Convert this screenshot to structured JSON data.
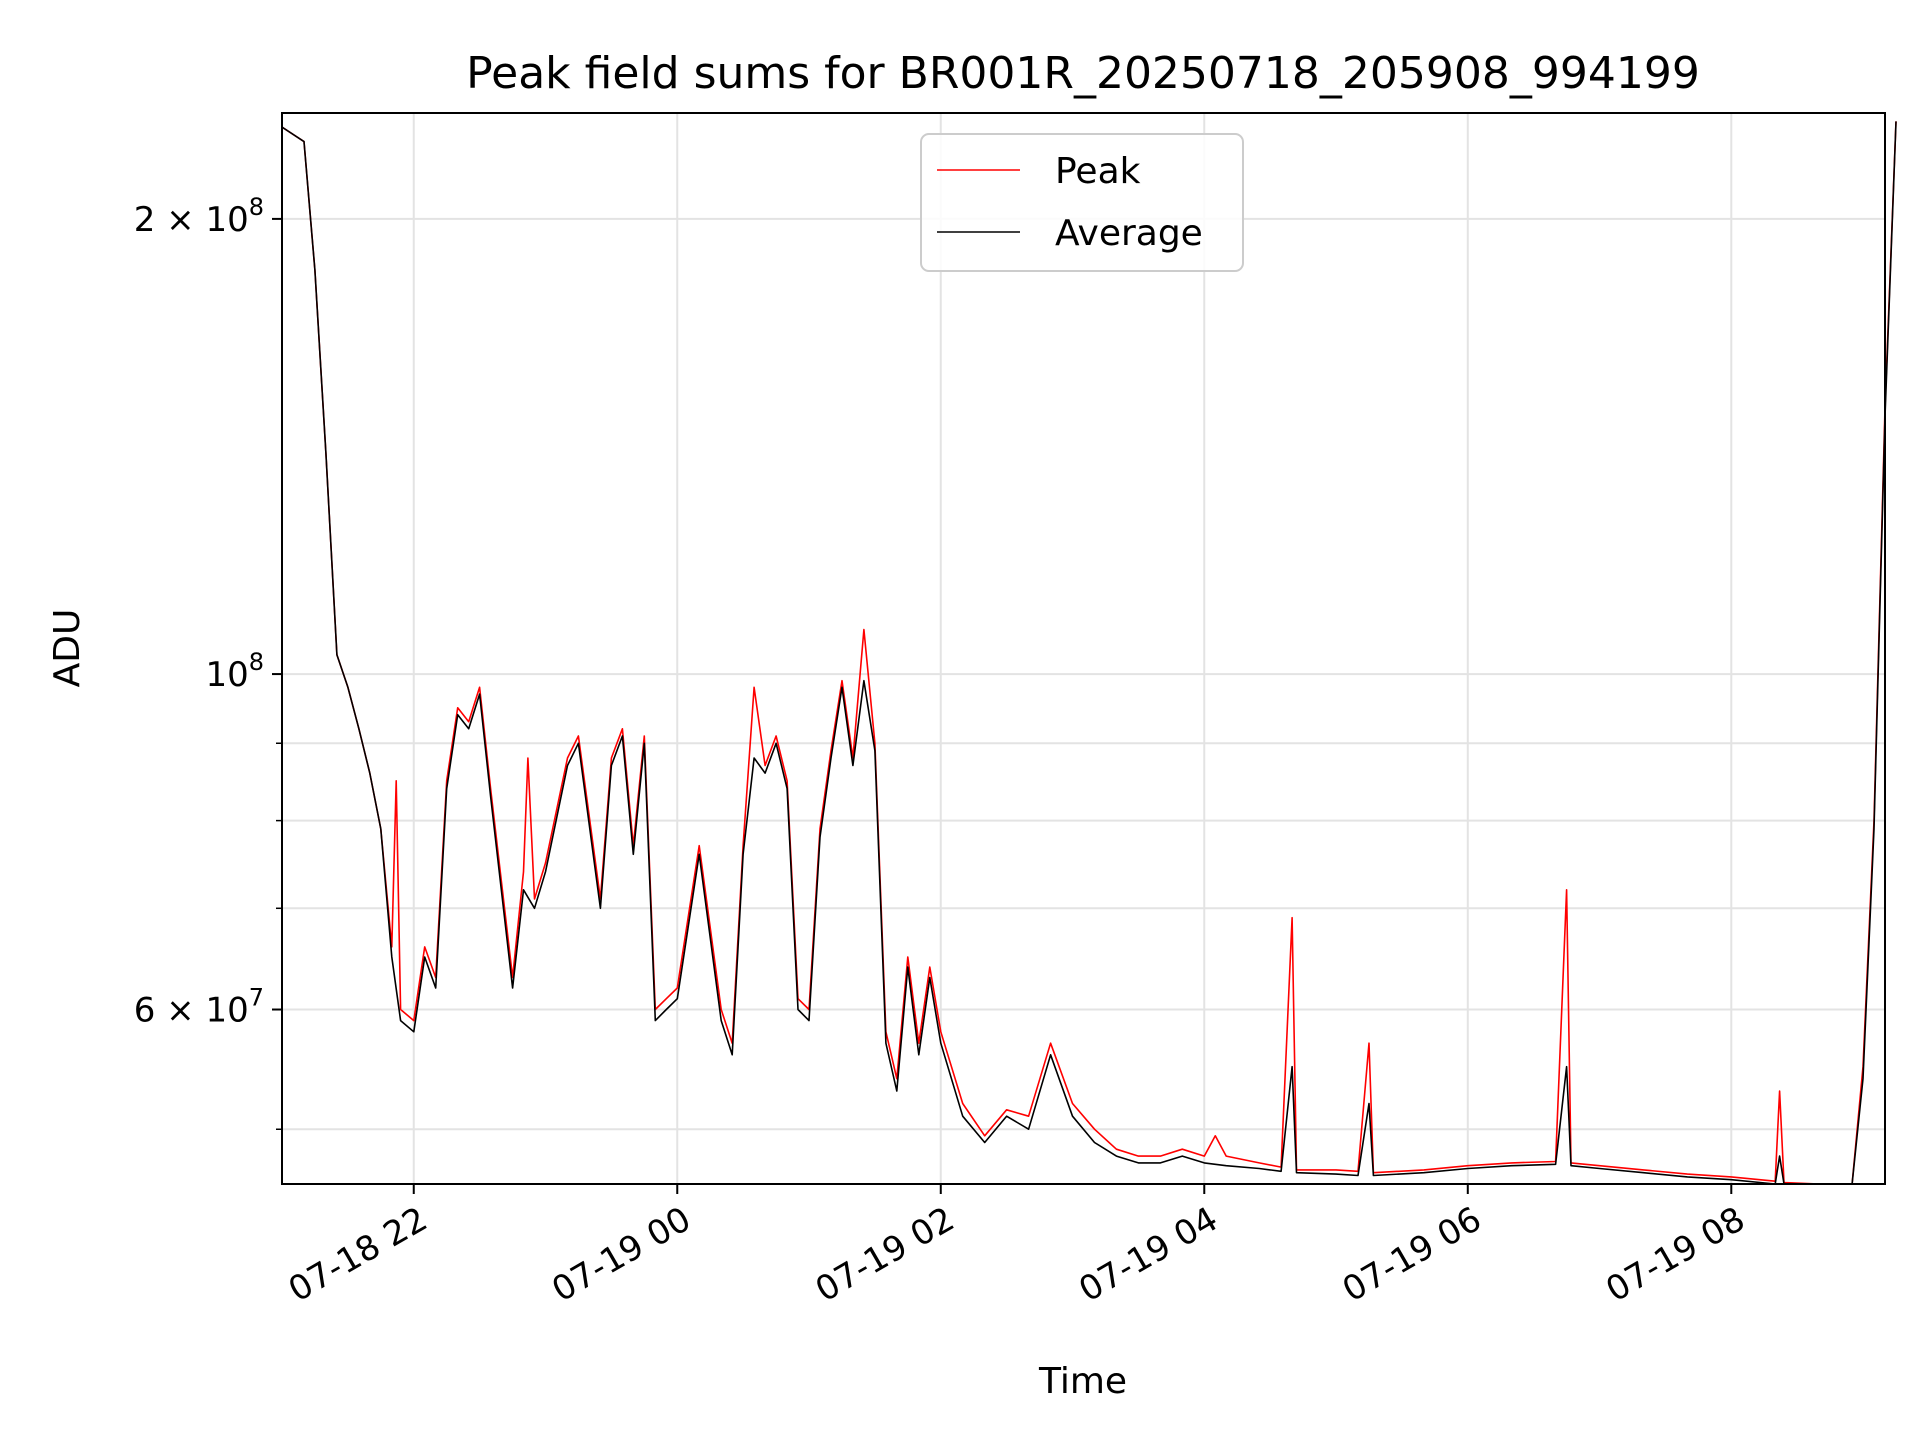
{
  "chart_data": {
    "type": "line",
    "title": "Peak field sums for BR001R_20250718_205908_994199",
    "xlabel": "Time",
    "ylabel": "ADU",
    "yscale": "log",
    "ylim": [
      46000000,
      235000000
    ],
    "xlim": [
      "07-18 21:00",
      "07-19 09:10"
    ],
    "grid": true,
    "legend_position": "top-center",
    "x_ticks": [
      {
        "x": "07-18 22:00",
        "label": "07-18 22"
      },
      {
        "x": "07-19 00:00",
        "label": "07-19 00"
      },
      {
        "x": "07-19 02:00",
        "label": "07-19 02"
      },
      {
        "x": "07-19 04:00",
        "label": "07-19 04"
      },
      {
        "x": "07-19 06:00",
        "label": "07-19 06"
      },
      {
        "x": "07-19 08:00",
        "label": "07-19 08"
      }
    ],
    "y_ticks": [
      {
        "value": 60000000,
        "base": "6 × 10",
        "exp": "7"
      },
      {
        "value": 100000000,
        "base": "10",
        "exp": "8"
      },
      {
        "value": 200000000,
        "base": "2 × 10",
        "exp": "8"
      }
    ],
    "y_minor_ticks": [
      50000000,
      70000000,
      80000000,
      90000000
    ],
    "series": [
      {
        "name": "Peak",
        "color": "#ff0000",
        "points": [
          [
            "07-18 21:00",
            230000000
          ],
          [
            "07-18 21:10",
            225000000
          ],
          [
            "07-18 21:15",
            185000000
          ],
          [
            "07-18 21:20",
            140000000
          ],
          [
            "07-18 21:25",
            103000000
          ],
          [
            "07-18 21:30",
            98000000
          ],
          [
            "07-18 21:35",
            92000000
          ],
          [
            "07-18 21:40",
            86000000
          ],
          [
            "07-18 21:45",
            79000000
          ],
          [
            "07-18 21:50",
            66000000
          ],
          [
            "07-18 21:52",
            85000000
          ],
          [
            "07-18 21:54",
            60000000
          ],
          [
            "07-18 22:00",
            59000000
          ],
          [
            "07-18 22:05",
            66000000
          ],
          [
            "07-18 22:10",
            63000000
          ],
          [
            "07-18 22:15",
            85000000
          ],
          [
            "07-18 22:20",
            95000000
          ],
          [
            "07-18 22:25",
            93000000
          ],
          [
            "07-18 22:30",
            98000000
          ],
          [
            "07-18 22:35",
            84000000
          ],
          [
            "07-18 22:45",
            63000000
          ],
          [
            "07-18 22:50",
            74000000
          ],
          [
            "07-18 22:52",
            88000000
          ],
          [
            "07-18 22:55",
            71000000
          ],
          [
            "07-18 23:00",
            75000000
          ],
          [
            "07-18 23:10",
            88000000
          ],
          [
            "07-18 23:15",
            91000000
          ],
          [
            "07-18 23:25",
            71000000
          ],
          [
            "07-18 23:30",
            88000000
          ],
          [
            "07-18 23:35",
            92000000
          ],
          [
            "07-18 23:40",
            77000000
          ],
          [
            "07-18 23:45",
            91000000
          ],
          [
            "07-18 23:50",
            60000000
          ],
          [
            "07-18 23:55",
            61000000
          ],
          [
            "07-19 00:00",
            62000000
          ],
          [
            "07-19 00:10",
            77000000
          ],
          [
            "07-19 00:20",
            60000000
          ],
          [
            "07-19 00:25",
            57000000
          ],
          [
            "07-19 00:30",
            77000000
          ],
          [
            "07-19 00:35",
            98000000
          ],
          [
            "07-19 00:40",
            87000000
          ],
          [
            "07-19 00:45",
            91000000
          ],
          [
            "07-19 00:50",
            85000000
          ],
          [
            "07-19 00:55",
            61000000
          ],
          [
            "07-19 01:00",
            60000000
          ],
          [
            "07-19 01:05",
            79000000
          ],
          [
            "07-19 01:10",
            89000000
          ],
          [
            "07-19 01:15",
            99000000
          ],
          [
            "07-19 01:20",
            88000000
          ],
          [
            "07-19 01:25",
            107000000
          ],
          [
            "07-19 01:30",
            90000000
          ],
          [
            "07-19 01:35",
            58000000
          ],
          [
            "07-19 01:40",
            54000000
          ],
          [
            "07-19 01:45",
            65000000
          ],
          [
            "07-19 01:50",
            57000000
          ],
          [
            "07-19 01:55",
            64000000
          ],
          [
            "07-19 02:00",
            58000000
          ],
          [
            "07-19 02:10",
            52000000
          ],
          [
            "07-19 02:20",
            49500000
          ],
          [
            "07-19 02:30",
            51500000
          ],
          [
            "07-19 02:40",
            51000000
          ],
          [
            "07-19 02:50",
            57000000
          ],
          [
            "07-19 03:00",
            52000000
          ],
          [
            "07-19 03:10",
            50000000
          ],
          [
            "07-19 03:20",
            48500000
          ],
          [
            "07-19 03:30",
            48000000
          ],
          [
            "07-19 03:40",
            48000000
          ],
          [
            "07-19 03:50",
            48500000
          ],
          [
            "07-19 04:00",
            48000000
          ],
          [
            "07-19 04:05",
            49500000
          ],
          [
            "07-19 04:10",
            48000000
          ],
          [
            "07-19 04:25",
            47500000
          ],
          [
            "07-19 04:35",
            47200000
          ],
          [
            "07-19 04:40",
            69000000
          ],
          [
            "07-19 04:42",
            47000000
          ],
          [
            "07-19 05:00",
            47000000
          ],
          [
            "07-19 05:10",
            46900000
          ],
          [
            "07-19 05:15",
            57000000
          ],
          [
            "07-19 05:17",
            46800000
          ],
          [
            "07-19 05:40",
            47000000
          ],
          [
            "07-19 06:00",
            47300000
          ],
          [
            "07-19 06:20",
            47500000
          ],
          [
            "07-19 06:40",
            47600000
          ],
          [
            "07-19 06:45",
            72000000
          ],
          [
            "07-19 06:47",
            47500000
          ],
          [
            "07-19 07:00",
            47300000
          ],
          [
            "07-19 07:20",
            47000000
          ],
          [
            "07-19 07:40",
            46700000
          ],
          [
            "07-19 08:00",
            46500000
          ],
          [
            "07-19 08:20",
            46200000
          ],
          [
            "07-19 08:22",
            53000000
          ],
          [
            "07-19 08:24",
            46100000
          ],
          [
            "07-19 08:40",
            45900000
          ],
          [
            "07-19 08:50",
            45700000
          ],
          [
            "07-19 08:55",
            46000000
          ],
          [
            "07-19 09:00",
            55000000
          ],
          [
            "07-19 09:05",
            80000000
          ],
          [
            "07-19 09:10",
            150000000
          ],
          [
            "07-19 09:15",
            232000000
          ]
        ]
      },
      {
        "name": "Average",
        "color": "#000000",
        "points": [
          [
            "07-18 21:00",
            230000000
          ],
          [
            "07-18 21:10",
            225000000
          ],
          [
            "07-18 21:15",
            185000000
          ],
          [
            "07-18 21:20",
            140000000
          ],
          [
            "07-18 21:25",
            103000000
          ],
          [
            "07-18 21:30",
            98000000
          ],
          [
            "07-18 21:35",
            92000000
          ],
          [
            "07-18 21:40",
            86000000
          ],
          [
            "07-18 21:45",
            79000000
          ],
          [
            "07-18 21:50",
            65000000
          ],
          [
            "07-18 21:54",
            59000000
          ],
          [
            "07-18 22:00",
            58000000
          ],
          [
            "07-18 22:05",
            65000000
          ],
          [
            "07-18 22:10",
            62000000
          ],
          [
            "07-18 22:15",
            84000000
          ],
          [
            "07-18 22:20",
            94000000
          ],
          [
            "07-18 22:25",
            92000000
          ],
          [
            "07-18 22:30",
            97000000
          ],
          [
            "07-18 22:35",
            83000000
          ],
          [
            "07-18 22:45",
            62000000
          ],
          [
            "07-18 22:50",
            72000000
          ],
          [
            "07-18 22:55",
            70000000
          ],
          [
            "07-18 23:00",
            74000000
          ],
          [
            "07-18 23:10",
            87000000
          ],
          [
            "07-18 23:15",
            90000000
          ],
          [
            "07-18 23:25",
            70000000
          ],
          [
            "07-18 23:30",
            87000000
          ],
          [
            "07-18 23:35",
            91000000
          ],
          [
            "07-18 23:40",
            76000000
          ],
          [
            "07-18 23:45",
            90000000
          ],
          [
            "07-18 23:50",
            59000000
          ],
          [
            "07-18 23:55",
            60000000
          ],
          [
            "07-19 00:00",
            61000000
          ],
          [
            "07-19 00:10",
            76000000
          ],
          [
            "07-19 00:20",
            59000000
          ],
          [
            "07-19 00:25",
            56000000
          ],
          [
            "07-19 00:30",
            76000000
          ],
          [
            "07-19 00:35",
            88000000
          ],
          [
            "07-19 00:40",
            86000000
          ],
          [
            "07-19 00:45",
            90000000
          ],
          [
            "07-19 00:50",
            84000000
          ],
          [
            "07-19 00:55",
            60000000
          ],
          [
            "07-19 01:00",
            59000000
          ],
          [
            "07-19 01:05",
            78000000
          ],
          [
            "07-19 01:10",
            88000000
          ],
          [
            "07-19 01:15",
            98000000
          ],
          [
            "07-19 01:20",
            87000000
          ],
          [
            "07-19 01:25",
            99000000
          ],
          [
            "07-19 01:30",
            89000000
          ],
          [
            "07-19 01:35",
            57000000
          ],
          [
            "07-19 01:40",
            53000000
          ],
          [
            "07-19 01:45",
            64000000
          ],
          [
            "07-19 01:50",
            56000000
          ],
          [
            "07-19 01:55",
            63000000
          ],
          [
            "07-19 02:00",
            57000000
          ],
          [
            "07-19 02:10",
            51000000
          ],
          [
            "07-19 02:20",
            49000000
          ],
          [
            "07-19 02:30",
            51000000
          ],
          [
            "07-19 02:40",
            50000000
          ],
          [
            "07-19 02:50",
            56000000
          ],
          [
            "07-19 03:00",
            51000000
          ],
          [
            "07-19 03:10",
            49000000
          ],
          [
            "07-19 03:20",
            48000000
          ],
          [
            "07-19 03:30",
            47500000
          ],
          [
            "07-19 03:40",
            47500000
          ],
          [
            "07-19 03:50",
            48000000
          ],
          [
            "07-19 04:00",
            47500000
          ],
          [
            "07-19 04:10",
            47300000
          ],
          [
            "07-19 04:25",
            47100000
          ],
          [
            "07-19 04:35",
            46900000
          ],
          [
            "07-19 04:40",
            55000000
          ],
          [
            "07-19 04:42",
            46800000
          ],
          [
            "07-19 05:00",
            46700000
          ],
          [
            "07-19 05:10",
            46600000
          ],
          [
            "07-19 05:15",
            52000000
          ],
          [
            "07-19 05:17",
            46600000
          ],
          [
            "07-19 05:40",
            46800000
          ],
          [
            "07-19 06:00",
            47100000
          ],
          [
            "07-19 06:20",
            47300000
          ],
          [
            "07-19 06:40",
            47400000
          ],
          [
            "07-19 06:45",
            55000000
          ],
          [
            "07-19 06:47",
            47300000
          ],
          [
            "07-19 07:00",
            47100000
          ],
          [
            "07-19 07:20",
            46800000
          ],
          [
            "07-19 07:40",
            46500000
          ],
          [
            "07-19 08:00",
            46300000
          ],
          [
            "07-19 08:20",
            46000000
          ],
          [
            "07-19 08:22",
            48000000
          ],
          [
            "07-19 08:24",
            45900000
          ],
          [
            "07-19 08:40",
            45700000
          ],
          [
            "07-19 08:50",
            45600000
          ],
          [
            "07-19 08:55",
            45900000
          ],
          [
            "07-19 09:00",
            54000000
          ],
          [
            "07-19 09:05",
            79000000
          ],
          [
            "07-19 09:10",
            148000000
          ],
          [
            "07-19 09:15",
            232000000
          ]
        ]
      }
    ]
  }
}
